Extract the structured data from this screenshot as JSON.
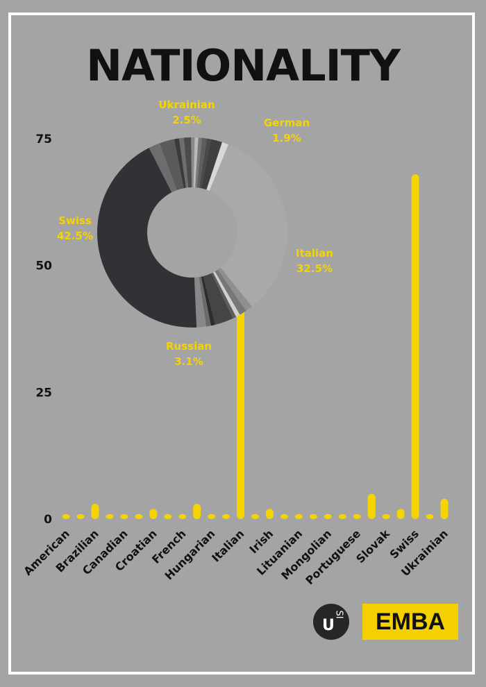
{
  "title": "NATIONALITY",
  "logo": {
    "mark": "USI",
    "badge": "EMBA"
  },
  "colors": {
    "bar": "#f5d400",
    "label": "#f5d400",
    "text": "#111111",
    "background": "#a4a4a4"
  },
  "chart_data": [
    {
      "type": "bar",
      "categories": [
        "American",
        "",
        "Brazilian",
        "",
        "Canadian",
        "",
        "Croatian",
        "",
        "French",
        "",
        "Hungarian",
        "",
        "Italian",
        "",
        "Irish",
        "",
        "Lituanian",
        "",
        "Mongolian",
        "",
        "Portuguese",
        "",
        "Slovak",
        "",
        "Swiss",
        "",
        "Ukrainian"
      ],
      "tick_labels": [
        "American",
        "Brazilian",
        "Canadian",
        "Croatian",
        "French",
        "Hungarian",
        "Italian",
        "Irish",
        "Lituanian",
        "Mongolian",
        "Portuguese",
        "Slovak",
        "Swiss",
        "Ukrainian"
      ],
      "values": [
        1,
        1,
        3,
        1,
        1,
        1,
        2,
        1,
        1,
        3,
        1,
        1,
        52,
        1,
        2,
        1,
        1,
        1,
        1,
        1,
        1,
        5,
        1,
        2,
        68,
        1,
        4
      ],
      "ylim": [
        0,
        75
      ],
      "yticks": [
        0,
        25,
        50,
        75
      ],
      "grid": false
    },
    {
      "type": "pie",
      "labels": [
        {
          "name": "Ukrainian",
          "value": "2.5%"
        },
        {
          "name": "German",
          "value": "1.9%"
        },
        {
          "name": "Italian",
          "value": "32.5%"
        },
        {
          "name": "Russian",
          "value": "3.1%"
        },
        {
          "name": "Swiss",
          "value": "42.5%"
        }
      ],
      "slices": [
        {
          "value": 2.5,
          "color": "#5a5a5a"
        },
        {
          "value": 0.8,
          "color": "#3a3a3a"
        },
        {
          "value": 0.8,
          "color": "#6e6e6e"
        },
        {
          "value": 1.2,
          "color": "#4b4b4b"
        },
        {
          "value": 0.6,
          "color": "#8a8a8a"
        },
        {
          "value": 0.6,
          "color": "#b9b9b9"
        },
        {
          "value": 0.6,
          "color": "#777777"
        },
        {
          "value": 0.8,
          "color": "#5e5e5e"
        },
        {
          "value": 0.7,
          "color": "#4a4a4a"
        },
        {
          "value": 1.9,
          "color": "#3f3f3f"
        },
        {
          "value": 1.1,
          "color": "#d8d8d8"
        },
        {
          "value": 32.5,
          "color": "#a9a9ab"
        },
        {
          "value": 1.2,
          "color": "#8f8f8f"
        },
        {
          "value": 1.2,
          "color": "#777777"
        },
        {
          "value": 0.7,
          "color": "#d0d0d0"
        },
        {
          "value": 0.6,
          "color": "#5e5e5e"
        },
        {
          "value": 3.1,
          "color": "#454545"
        },
        {
          "value": 0.7,
          "color": "#2c2c2c"
        },
        {
          "value": 0.8,
          "color": "#6a6a6a"
        },
        {
          "value": 1.6,
          "color": "#888888"
        },
        {
          "value": 42.5,
          "color": "#303235"
        },
        {
          "value": 1.9,
          "color": "#6d6d70"
        }
      ],
      "donut": true
    }
  ]
}
